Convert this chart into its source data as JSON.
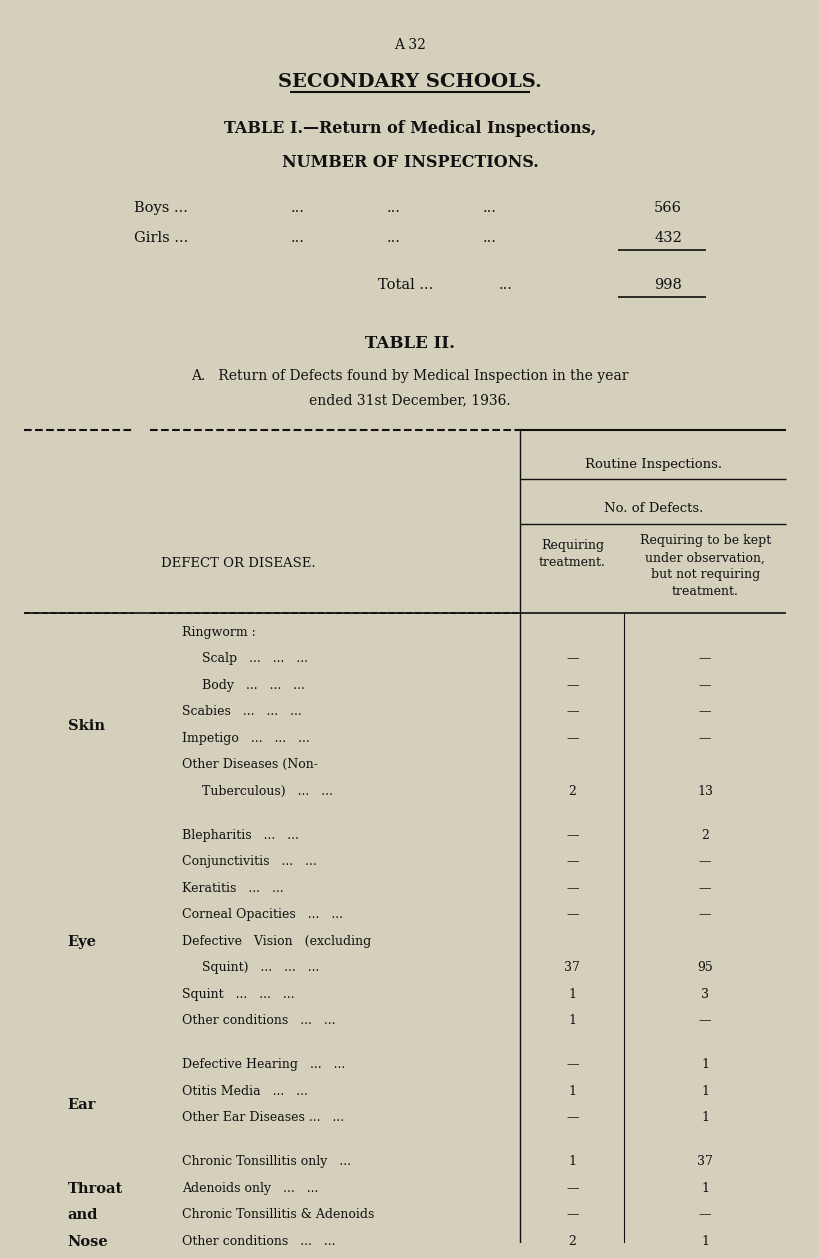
{
  "bg_color": "#d4d0bc",
  "page_label": "A 32",
  "main_title": "SECONDARY SCHOOLS.",
  "table1_title": "TABLE I.—Return of Medical Inspections,",
  "table1_subtitle": "NUMBER OF INSPECTIONS.",
  "boys_label": "Boys ...",
  "boys_value": "566",
  "girls_label": "Girls ...",
  "girls_value": "432",
  "total_label": "Total ...",
  "total_value": "998",
  "table2_title": "TABLE II.",
  "table2_subtitle_line1": "A.   Return of Defects found by Medical Inspection in the year",
  "table2_subtitle_line2": "ended 31st December, 1936.",
  "col_header1": "Routine Inspections.",
  "col_header2": "No. of Defects.",
  "col_req_header": "Requiring\ntreatment.",
  "col_obs_header": "Requiring to be kept\nunder observation,\nbut not requiring\ntreatment.",
  "defect_col_header": "DEFECT OR DISEASE.",
  "rows": [
    {
      "category": "Skin",
      "category_lines": [
        "Skin"
      ],
      "sub_items": [
        {
          "text": "Ringworm :",
          "indent": 0,
          "req": "",
          "obs": ""
        },
        {
          "text": "Scalp   ...   ...   ...",
          "indent": 1,
          "req": "—",
          "obs": "—"
        },
        {
          "text": "Body   ...   ...   ...",
          "indent": 1,
          "req": "—",
          "obs": "—"
        },
        {
          "text": "Scabies   ...   ...   ...",
          "indent": 0,
          "req": "—",
          "obs": "—"
        },
        {
          "text": "Impetigo   ...   ...   ...",
          "indent": 0,
          "req": "—",
          "obs": "—"
        },
        {
          "text": "Other Diseases (Non-",
          "indent": 0,
          "req": "",
          "obs": ""
        },
        {
          "text": "Tuberculous)   ...   ...",
          "indent": 1,
          "req": "2",
          "obs": "13"
        }
      ]
    },
    {
      "category": "Eye",
      "category_lines": [
        "Eye"
      ],
      "sub_items": [
        {
          "text": "Blepharitis   ...   ...",
          "indent": 0,
          "req": "—",
          "obs": "2"
        },
        {
          "text": "Conjunctivitis   ...   ...",
          "indent": 0,
          "req": "—",
          "obs": "—"
        },
        {
          "text": "Keratitis   ...   ...",
          "indent": 0,
          "req": "—",
          "obs": "—"
        },
        {
          "text": "Corneal Opacities   ...   ...",
          "indent": 0,
          "req": "—",
          "obs": "—"
        },
        {
          "text": "Defective   Vision   (excluding",
          "indent": 0,
          "req": "",
          "obs": ""
        },
        {
          "text": "Squint)   ...   ...   ...",
          "indent": 1,
          "req": "37",
          "obs": "95"
        },
        {
          "text": "Squint   ...   ...   ...",
          "indent": 0,
          "req": "1",
          "obs": "3"
        },
        {
          "text": "Other conditions   ...   ...",
          "indent": 0,
          "req": "1",
          "obs": "—"
        }
      ]
    },
    {
      "category": "Ear",
      "category_lines": [
        "Ear"
      ],
      "sub_items": [
        {
          "text": "Defective Hearing   ...   ...",
          "indent": 0,
          "req": "—",
          "obs": "1"
        },
        {
          "text": "Otitis Media   ...   ...",
          "indent": 0,
          "req": "1",
          "obs": "1"
        },
        {
          "text": "Other Ear Diseases ...   ...",
          "indent": 0,
          "req": "—",
          "obs": "1"
        }
      ]
    },
    {
      "category": "Nose\nand\nThroat",
      "category_lines": [
        "Nose",
        "and",
        "Throat"
      ],
      "sub_items": [
        {
          "text": "Chronic Tonsillitis only   ...",
          "indent": 0,
          "req": "1",
          "obs": "37"
        },
        {
          "text": "Adenoids only   ...   ...",
          "indent": 0,
          "req": "—",
          "obs": "1"
        },
        {
          "text": "Chronic Tonsillitis & Adenoids",
          "indent": 0,
          "req": "—",
          "obs": "—"
        },
        {
          "text": "Other conditions   ...   ...",
          "indent": 0,
          "req": "2",
          "obs": "1"
        }
      ]
    }
  ]
}
